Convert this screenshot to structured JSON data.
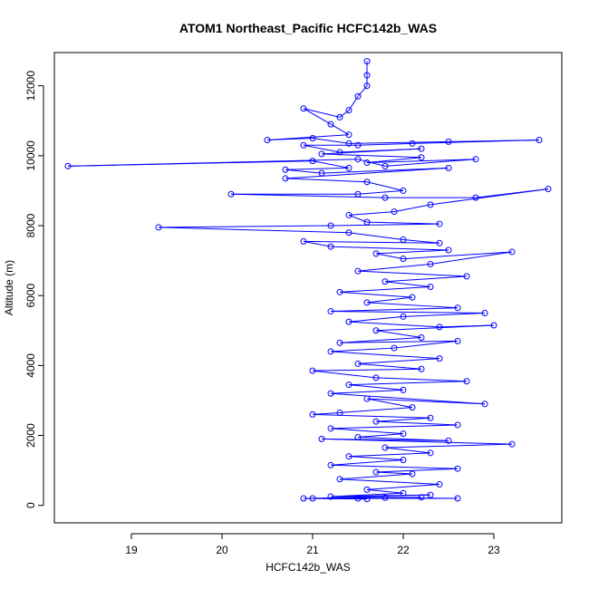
{
  "chart_data": {
    "type": "line",
    "title": "ATOM1 Northeast_Pacific HCFC142b_WAS",
    "xlabel": "HCFC142b_WAS",
    "ylabel": "Altitude (m)",
    "xlim": [
      18.15,
      23.75
    ],
    "ylim": [
      -500,
      12950
    ],
    "x_ticks": [
      19,
      20,
      21,
      22,
      23
    ],
    "y_ticks": [
      0,
      2000,
      4000,
      6000,
      8000,
      10000,
      12000
    ],
    "markers": "open-circle",
    "series_color": "#0000ff",
    "grid": false,
    "series": [
      {
        "points": [
          [
            21.6,
            12700
          ],
          [
            21.6,
            12300
          ],
          [
            21.6,
            12000
          ],
          [
            21.5,
            11700
          ],
          [
            21.4,
            11300
          ],
          [
            21.3,
            11100
          ],
          [
            20.9,
            11350
          ],
          [
            21.2,
            10900
          ],
          [
            21.4,
            10600
          ],
          [
            20.5,
            10450
          ],
          [
            21.0,
            10500
          ],
          [
            21.4,
            10350
          ],
          [
            22.5,
            10400
          ],
          [
            23.5,
            10450
          ],
          [
            22.1,
            10350
          ],
          [
            21.5,
            10300
          ],
          [
            20.9,
            10300
          ],
          [
            21.3,
            10100
          ],
          [
            22.2,
            10200
          ],
          [
            21.1,
            10050
          ],
          [
            22.2,
            9950
          ],
          [
            21.6,
            9800
          ],
          [
            22.8,
            9900
          ],
          [
            21.8,
            9700
          ],
          [
            21.5,
            9900
          ],
          [
            18.3,
            9700
          ],
          [
            21.0,
            9850
          ],
          [
            21.4,
            9650
          ],
          [
            20.7,
            9600
          ],
          [
            21.1,
            9500
          ],
          [
            22.5,
            9650
          ],
          [
            20.7,
            9350
          ],
          [
            21.6,
            9250
          ],
          [
            22.0,
            9000
          ],
          [
            21.5,
            8900
          ],
          [
            20.1,
            8900
          ],
          [
            21.8,
            8800
          ],
          [
            22.8,
            8800
          ],
          [
            23.6,
            9050
          ],
          [
            22.3,
            8600
          ],
          [
            21.9,
            8400
          ],
          [
            21.4,
            8300
          ],
          [
            21.6,
            8100
          ],
          [
            22.4,
            8050
          ],
          [
            21.2,
            8000
          ],
          [
            19.3,
            7950
          ],
          [
            21.4,
            7800
          ],
          [
            22.0,
            7600
          ],
          [
            22.4,
            7500
          ],
          [
            20.9,
            7550
          ],
          [
            21.2,
            7400
          ],
          [
            22.5,
            7300
          ],
          [
            21.7,
            7200
          ],
          [
            22.0,
            7050
          ],
          [
            23.2,
            7250
          ],
          [
            22.3,
            6900
          ],
          [
            21.5,
            6700
          ],
          [
            22.7,
            6550
          ],
          [
            21.8,
            6400
          ],
          [
            22.3,
            6250
          ],
          [
            21.3,
            6100
          ],
          [
            22.1,
            5950
          ],
          [
            21.6,
            5800
          ],
          [
            22.6,
            5650
          ],
          [
            21.2,
            5550
          ],
          [
            22.9,
            5500
          ],
          [
            22.0,
            5400
          ],
          [
            21.4,
            5250
          ],
          [
            22.4,
            5100
          ],
          [
            23.0,
            5150
          ],
          [
            21.7,
            5000
          ],
          [
            22.2,
            4800
          ],
          [
            21.3,
            4650
          ],
          [
            22.6,
            4700
          ],
          [
            21.9,
            4500
          ],
          [
            21.2,
            4400
          ],
          [
            22.4,
            4200
          ],
          [
            21.5,
            4050
          ],
          [
            22.2,
            3900
          ],
          [
            21.0,
            3850
          ],
          [
            21.7,
            3650
          ],
          [
            22.7,
            3550
          ],
          [
            21.4,
            3450
          ],
          [
            22.0,
            3300
          ],
          [
            21.2,
            3200
          ],
          [
            22.9,
            2900
          ],
          [
            21.6,
            3050
          ],
          [
            22.1,
            2800
          ],
          [
            21.3,
            2650
          ],
          [
            21.0,
            2600
          ],
          [
            22.3,
            2500
          ],
          [
            21.7,
            2400
          ],
          [
            22.6,
            2300
          ],
          [
            21.2,
            2200
          ],
          [
            22.0,
            2050
          ],
          [
            21.5,
            1950
          ],
          [
            22.5,
            1850
          ],
          [
            21.1,
            1900
          ],
          [
            23.2,
            1750
          ],
          [
            21.8,
            1650
          ],
          [
            22.3,
            1500
          ],
          [
            21.4,
            1400
          ],
          [
            22.0,
            1300
          ],
          [
            21.2,
            1150
          ],
          [
            22.6,
            1050
          ],
          [
            21.7,
            950
          ],
          [
            22.1,
            900
          ],
          [
            21.3,
            750
          ],
          [
            22.4,
            600
          ],
          [
            21.6,
            450
          ],
          [
            22.0,
            350
          ],
          [
            21.2,
            250
          ],
          [
            22.3,
            300
          ],
          [
            21.0,
            200
          ],
          [
            21.8,
            220
          ],
          [
            22.6,
            200
          ],
          [
            21.5,
            200
          ],
          [
            22.2,
            230
          ],
          [
            20.9,
            200
          ],
          [
            21.6,
            180
          ]
        ]
      }
    ]
  }
}
